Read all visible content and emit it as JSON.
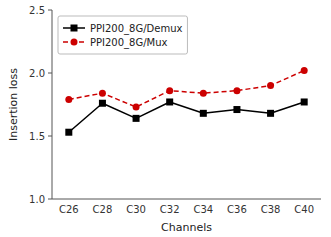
{
  "chart_data": {
    "type": "line",
    "x_label": "Channels",
    "y_label": "Insertion loss",
    "categories": [
      "C26",
      "C28",
      "C30",
      "C32",
      "C34",
      "C36",
      "C38",
      "C40"
    ],
    "series": [
      {
        "name": "PPI200_8G/Demux",
        "color": "#000000",
        "marker": "square",
        "line_style": "solid",
        "values": [
          1.53,
          1.76,
          1.64,
          1.77,
          1.68,
          1.71,
          1.68,
          1.77
        ]
      },
      {
        "name": "PPI200_8G/Mux",
        "color": "#cc0000",
        "marker": "circle",
        "line_style": "dashed",
        "values": [
          1.79,
          1.84,
          1.73,
          1.86,
          1.84,
          1.86,
          1.9,
          2.02
        ]
      }
    ],
    "ylim": [
      1.0,
      2.5
    ],
    "yticks": [
      {
        "value": 1.0,
        "label": "1.0"
      },
      1.5,
      {
        "value": 2.0,
        "label": "2.0"
      },
      2.5
    ],
    "grid": false,
    "legend": "upper left"
  }
}
